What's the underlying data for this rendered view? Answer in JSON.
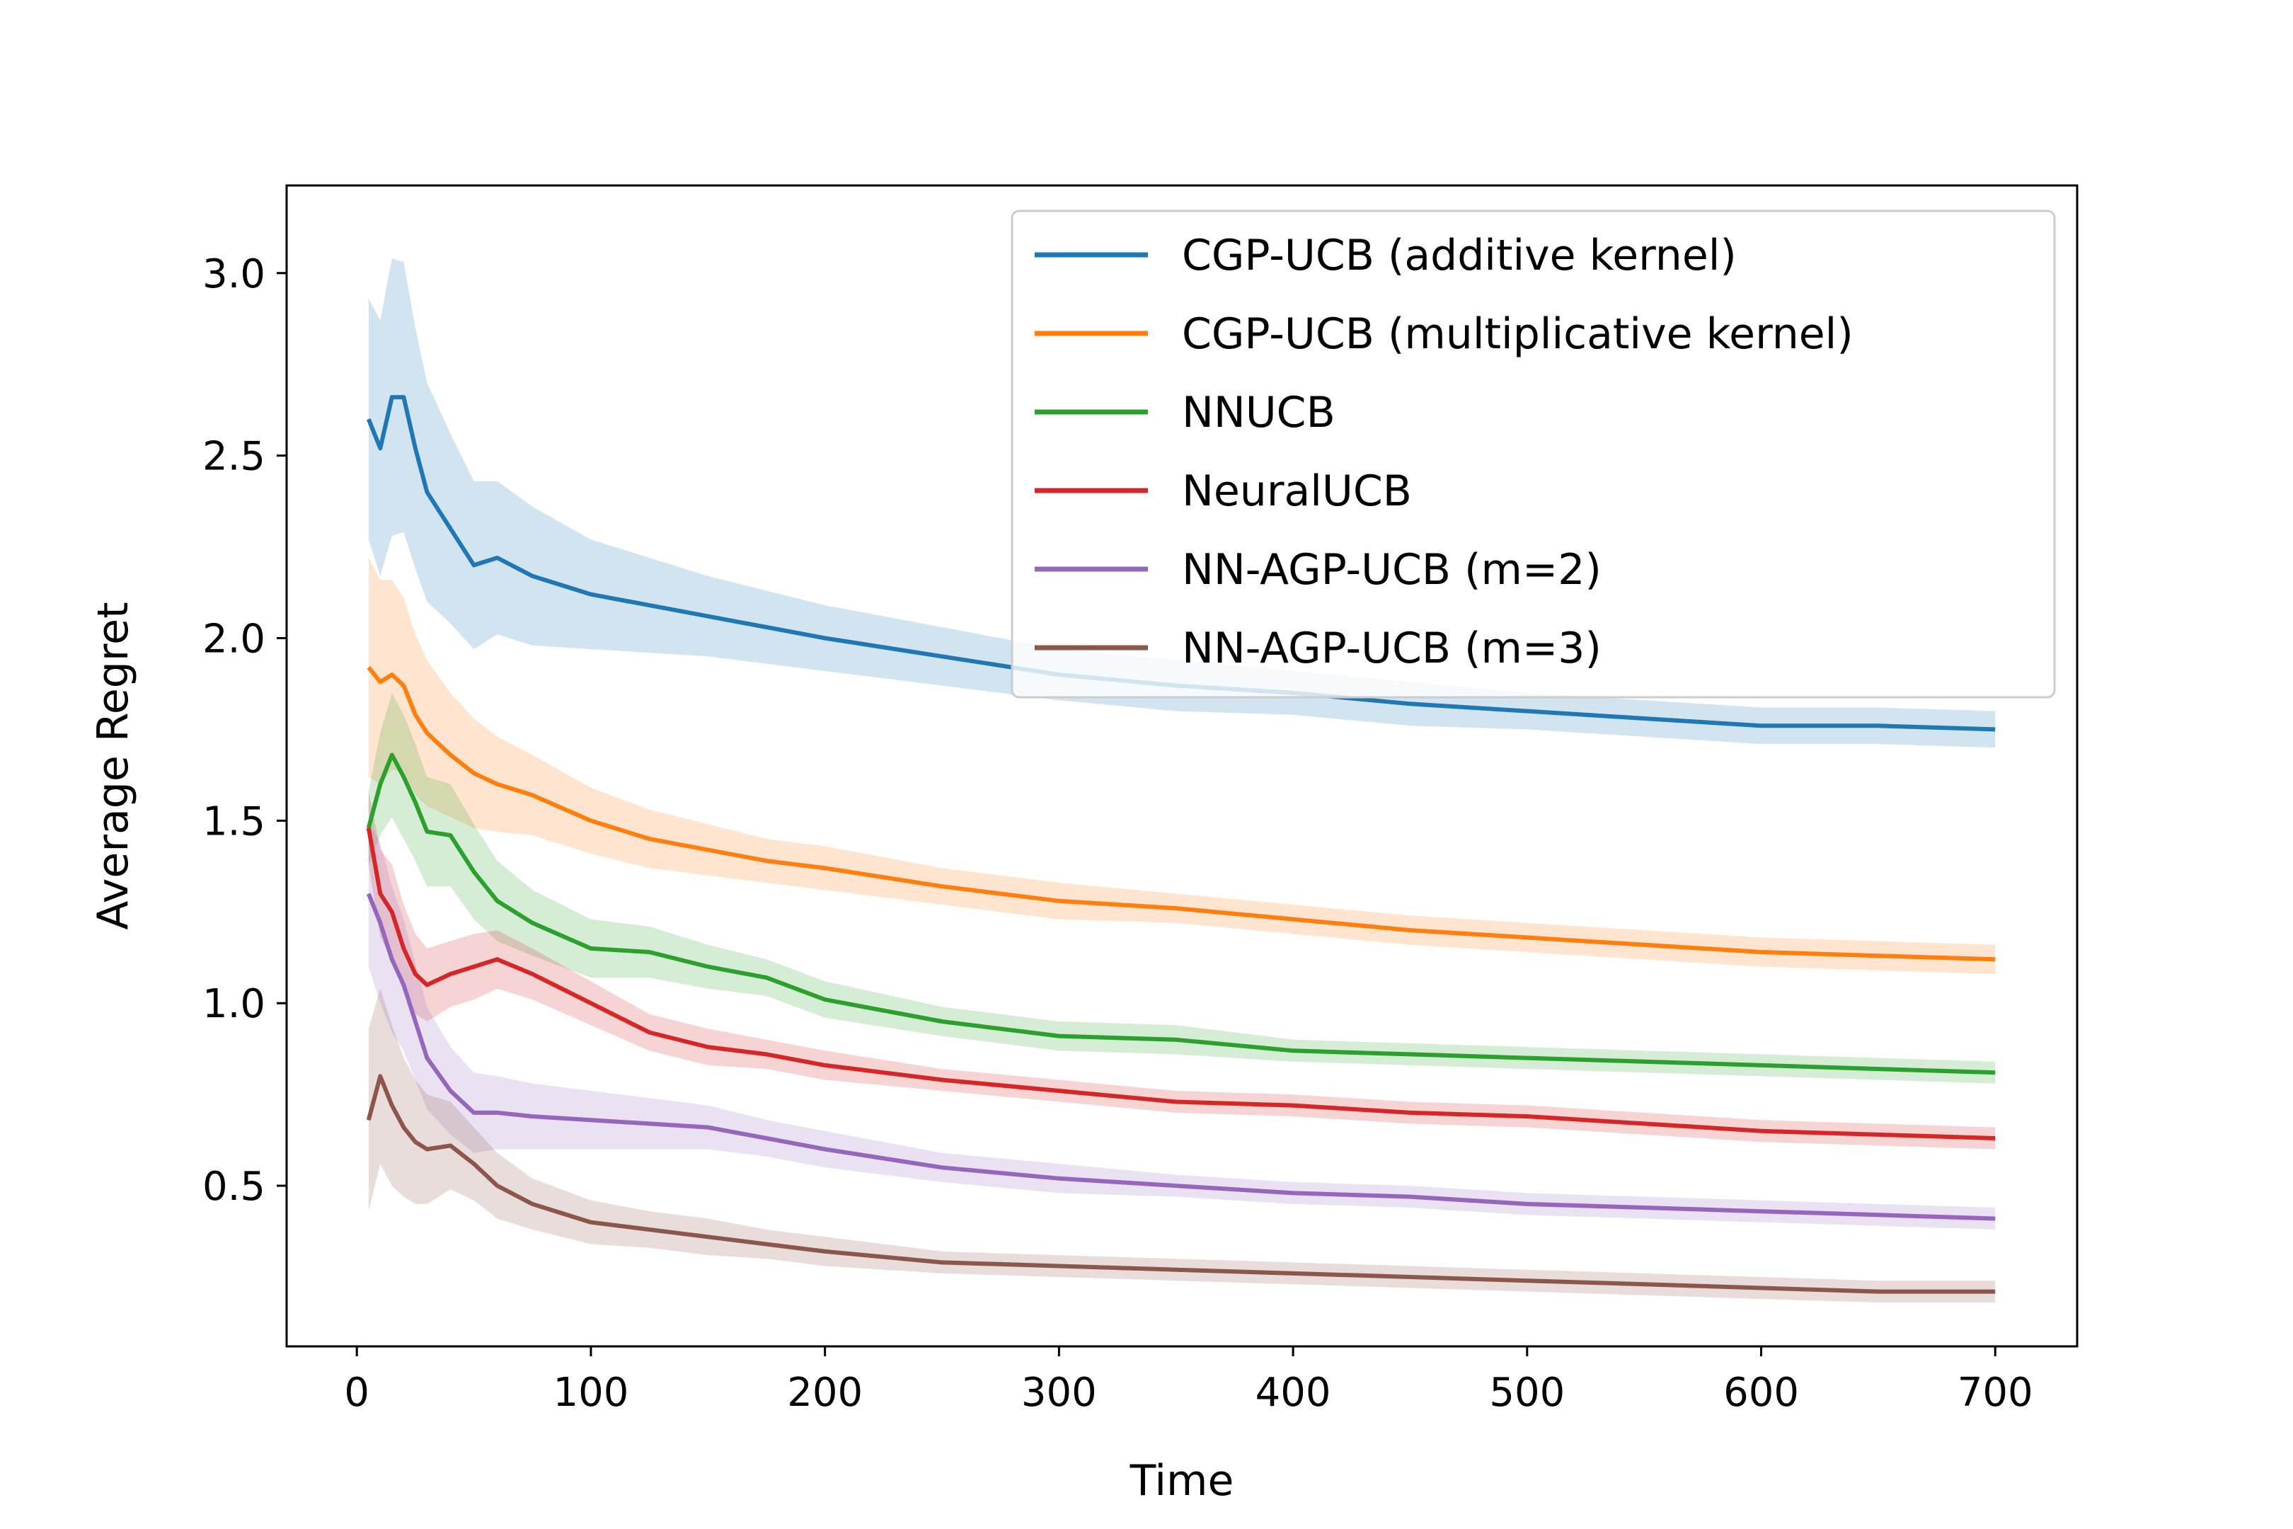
{
  "chart_data": {
    "type": "line",
    "title": "",
    "xlabel": "Time",
    "ylabel": "Average Regret",
    "xlim": [
      -30,
      735
    ],
    "ylim": [
      0.06,
      3.24
    ],
    "xticks": [
      0,
      100,
      200,
      300,
      400,
      500,
      600,
      700
    ],
    "yticks": [
      0.5,
      1.0,
      1.5,
      2.0,
      2.5,
      3.0
    ],
    "ytick_labels": [
      "0.5",
      "1.0",
      "1.5",
      "2.0",
      "2.5",
      "3.0"
    ],
    "grid": false,
    "legend_position": "top-right",
    "x": [
      5,
      10,
      15,
      20,
      25,
      30,
      40,
      50,
      60,
      75,
      100,
      125,
      150,
      175,
      200,
      250,
      300,
      350,
      400,
      450,
      500,
      550,
      600,
      650,
      700
    ],
    "series": [
      {
        "name": "CGP-UCB (additive kernel)",
        "color": "#1f77b4",
        "values": [
          2.6,
          2.52,
          2.66,
          2.66,
          2.52,
          2.4,
          2.3,
          2.2,
          2.22,
          2.17,
          2.12,
          2.09,
          2.06,
          2.03,
          2.0,
          1.95,
          1.9,
          1.87,
          1.85,
          1.82,
          1.8,
          1.78,
          1.76,
          1.76,
          1.75
        ],
        "band": [
          0.33,
          0.35,
          0.38,
          0.37,
          0.33,
          0.3,
          0.26,
          0.23,
          0.21,
          0.19,
          0.15,
          0.13,
          0.11,
          0.1,
          0.09,
          0.08,
          0.07,
          0.07,
          0.06,
          0.06,
          0.05,
          0.05,
          0.05,
          0.05,
          0.05
        ]
      },
      {
        "name": "CGP-UCB (multiplicative kernel)",
        "color": "#ff7f0e",
        "values": [
          1.92,
          1.88,
          1.9,
          1.87,
          1.79,
          1.74,
          1.68,
          1.63,
          1.6,
          1.57,
          1.5,
          1.45,
          1.42,
          1.39,
          1.37,
          1.32,
          1.28,
          1.26,
          1.23,
          1.2,
          1.18,
          1.16,
          1.14,
          1.13,
          1.12
        ],
        "band": [
          0.3,
          0.28,
          0.26,
          0.24,
          0.22,
          0.2,
          0.17,
          0.15,
          0.13,
          0.11,
          0.09,
          0.08,
          0.07,
          0.06,
          0.06,
          0.05,
          0.05,
          0.04,
          0.04,
          0.04,
          0.04,
          0.04,
          0.04,
          0.04,
          0.04
        ]
      },
      {
        "name": "NNUCB",
        "color": "#2ca02c",
        "values": [
          1.48,
          1.6,
          1.68,
          1.62,
          1.55,
          1.47,
          1.46,
          1.36,
          1.28,
          1.22,
          1.15,
          1.14,
          1.1,
          1.07,
          1.01,
          0.95,
          0.91,
          0.9,
          0.87,
          0.86,
          0.85,
          0.84,
          0.83,
          0.82,
          0.81
        ],
        "band": [
          0.1,
          0.14,
          0.17,
          0.17,
          0.16,
          0.15,
          0.14,
          0.13,
          0.11,
          0.09,
          0.08,
          0.07,
          0.06,
          0.05,
          0.05,
          0.04,
          0.04,
          0.04,
          0.03,
          0.03,
          0.03,
          0.03,
          0.03,
          0.03,
          0.03
        ]
      },
      {
        "name": "NeuralUCB",
        "color": "#d62728",
        "values": [
          1.48,
          1.3,
          1.25,
          1.15,
          1.08,
          1.05,
          1.08,
          1.1,
          1.12,
          1.08,
          1.0,
          0.92,
          0.88,
          0.86,
          0.83,
          0.79,
          0.76,
          0.73,
          0.72,
          0.7,
          0.69,
          0.67,
          0.65,
          0.64,
          0.63
        ],
        "band": [
          0.1,
          0.12,
          0.13,
          0.12,
          0.11,
          0.1,
          0.09,
          0.09,
          0.08,
          0.07,
          0.06,
          0.05,
          0.05,
          0.04,
          0.04,
          0.03,
          0.03,
          0.03,
          0.03,
          0.03,
          0.03,
          0.03,
          0.03,
          0.03,
          0.03
        ]
      },
      {
        "name": "NN-AGP-UCB (m=2)",
        "color": "#9467bd",
        "values": [
          1.3,
          1.22,
          1.12,
          1.05,
          0.95,
          0.85,
          0.76,
          0.7,
          0.7,
          0.69,
          0.68,
          0.67,
          0.66,
          0.63,
          0.6,
          0.55,
          0.52,
          0.5,
          0.48,
          0.47,
          0.45,
          0.44,
          0.43,
          0.42,
          0.41
        ],
        "band": [
          0.2,
          0.22,
          0.2,
          0.18,
          0.16,
          0.14,
          0.12,
          0.11,
          0.1,
          0.09,
          0.08,
          0.07,
          0.06,
          0.05,
          0.05,
          0.04,
          0.04,
          0.03,
          0.03,
          0.03,
          0.03,
          0.03,
          0.03,
          0.03,
          0.03
        ]
      },
      {
        "name": "NN-AGP-UCB (m=3)",
        "color": "#8c564b",
        "values": [
          0.68,
          0.8,
          0.72,
          0.66,
          0.62,
          0.6,
          0.61,
          0.56,
          0.5,
          0.45,
          0.4,
          0.38,
          0.36,
          0.34,
          0.32,
          0.29,
          0.28,
          0.27,
          0.26,
          0.25,
          0.24,
          0.23,
          0.22,
          0.21,
          0.21
        ],
        "band": [
          0.25,
          0.24,
          0.22,
          0.19,
          0.17,
          0.15,
          0.12,
          0.1,
          0.09,
          0.07,
          0.06,
          0.05,
          0.05,
          0.04,
          0.04,
          0.03,
          0.03,
          0.03,
          0.03,
          0.03,
          0.03,
          0.03,
          0.03,
          0.03,
          0.03
        ]
      }
    ]
  }
}
